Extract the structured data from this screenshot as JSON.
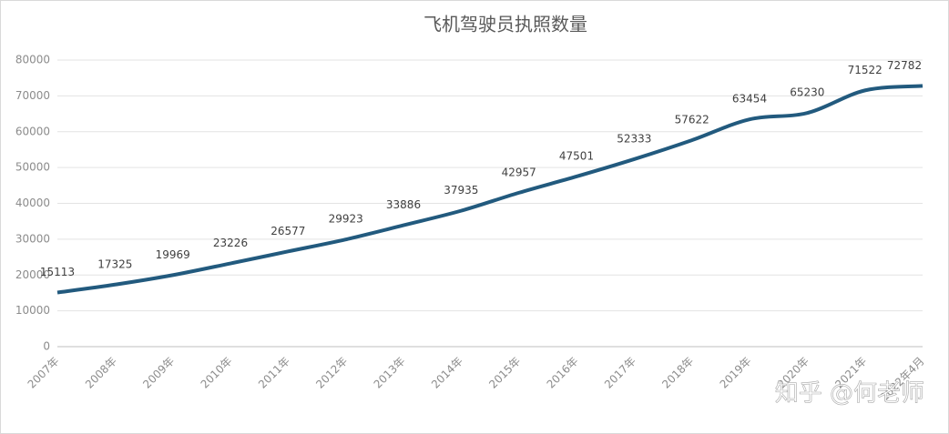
{
  "chart_data": {
    "type": "line",
    "title": "飞机驾驶员执照数量",
    "categories": [
      "2007年",
      "2008年",
      "2009年",
      "2010年",
      "2011年",
      "2012年",
      "2013年",
      "2014年",
      "2015年",
      "2016年",
      "2017年",
      "2018年",
      "2019年",
      "2020年",
      "2021年",
      "2022年4月"
    ],
    "values": [
      15113,
      17325,
      19969,
      23226,
      26577,
      29923,
      33886,
      37935,
      42957,
      47501,
      52333,
      57622,
      63454,
      65230,
      71522,
      72782
    ],
    "color": "#225a7e",
    "ylim": [
      0,
      80000
    ],
    "yticks": [
      0,
      10000,
      20000,
      30000,
      40000,
      50000,
      60000,
      70000,
      80000
    ],
    "grid": true,
    "watermark": "知乎 @何老师"
  }
}
